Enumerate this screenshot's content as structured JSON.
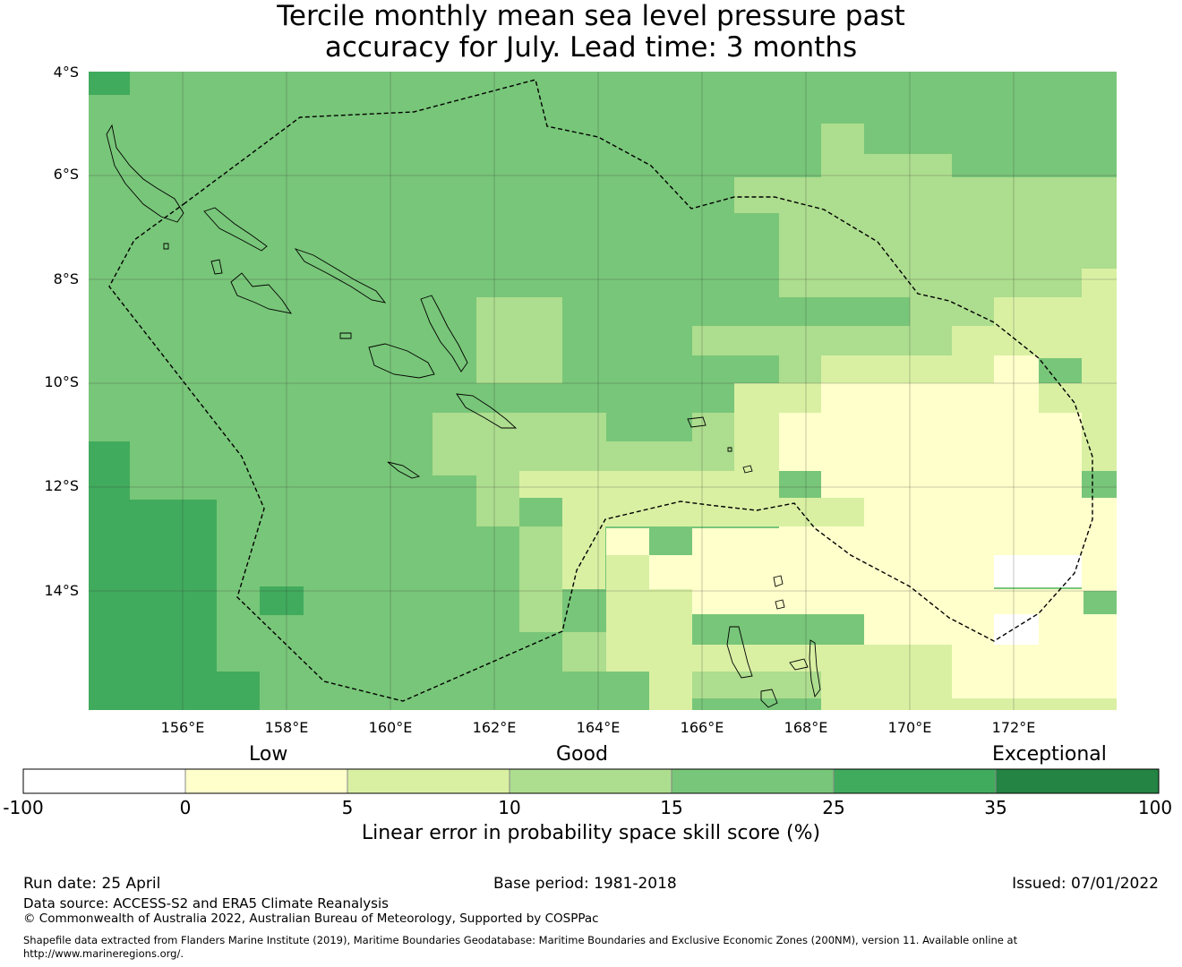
{
  "title_line1": "Tercile monthly mean sea level pressure past",
  "title_line2": "accuracy for July. Lead time: 3 months",
  "map": {
    "lat_labels": [
      "4°S",
      "6°S",
      "8°S",
      "10°S",
      "12°S",
      "14°S"
    ],
    "lon_labels": [
      "156°E",
      "158°E",
      "160°E",
      "162°E",
      "164°E",
      "166°E",
      "168°E",
      "170°E",
      "172°E"
    ],
    "colors": {
      "lt0": "#ffffff",
      "c0_5": "#ffffcc",
      "c5_10": "#d9f0a3",
      "c10_15": "#addd8e",
      "c15_25": "#78c679",
      "c25_35": "#41ab5d",
      "c35_100": "#238443"
    },
    "boundary": "dashed EEZ boundary",
    "coastline": "Solomon Islands and Vanuatu"
  },
  "colorbar": {
    "category_low": "Low",
    "category_good": "Good",
    "category_exceptional": "Exceptional",
    "ticks": [
      "-100",
      "0",
      "5",
      "10",
      "15",
      "25",
      "35",
      "100"
    ],
    "label": "Linear error in probability space skill score (%)"
  },
  "footer": {
    "run_date": "Run date: 25 April",
    "base_period": "Base period: 1981-2018",
    "issued": "Issued: 07/01/2022",
    "data_source": "Data source: ACCESS-S2 and ERA5 Climate Reanalysis",
    "copyright": "© Commonwealth of Australia 2022, Australian Bureau of Meteorology, Supported by COSPPac",
    "shapefile_line1": "Shapefile data extracted from Flanders Marine Institute (2019), Maritime Boundaries Geodatabase: Maritime Boundaries and Exclusive Economic Zones (200NM), version 11. Available online at",
    "shapefile_line2": "http://www.marineregions.org/."
  }
}
